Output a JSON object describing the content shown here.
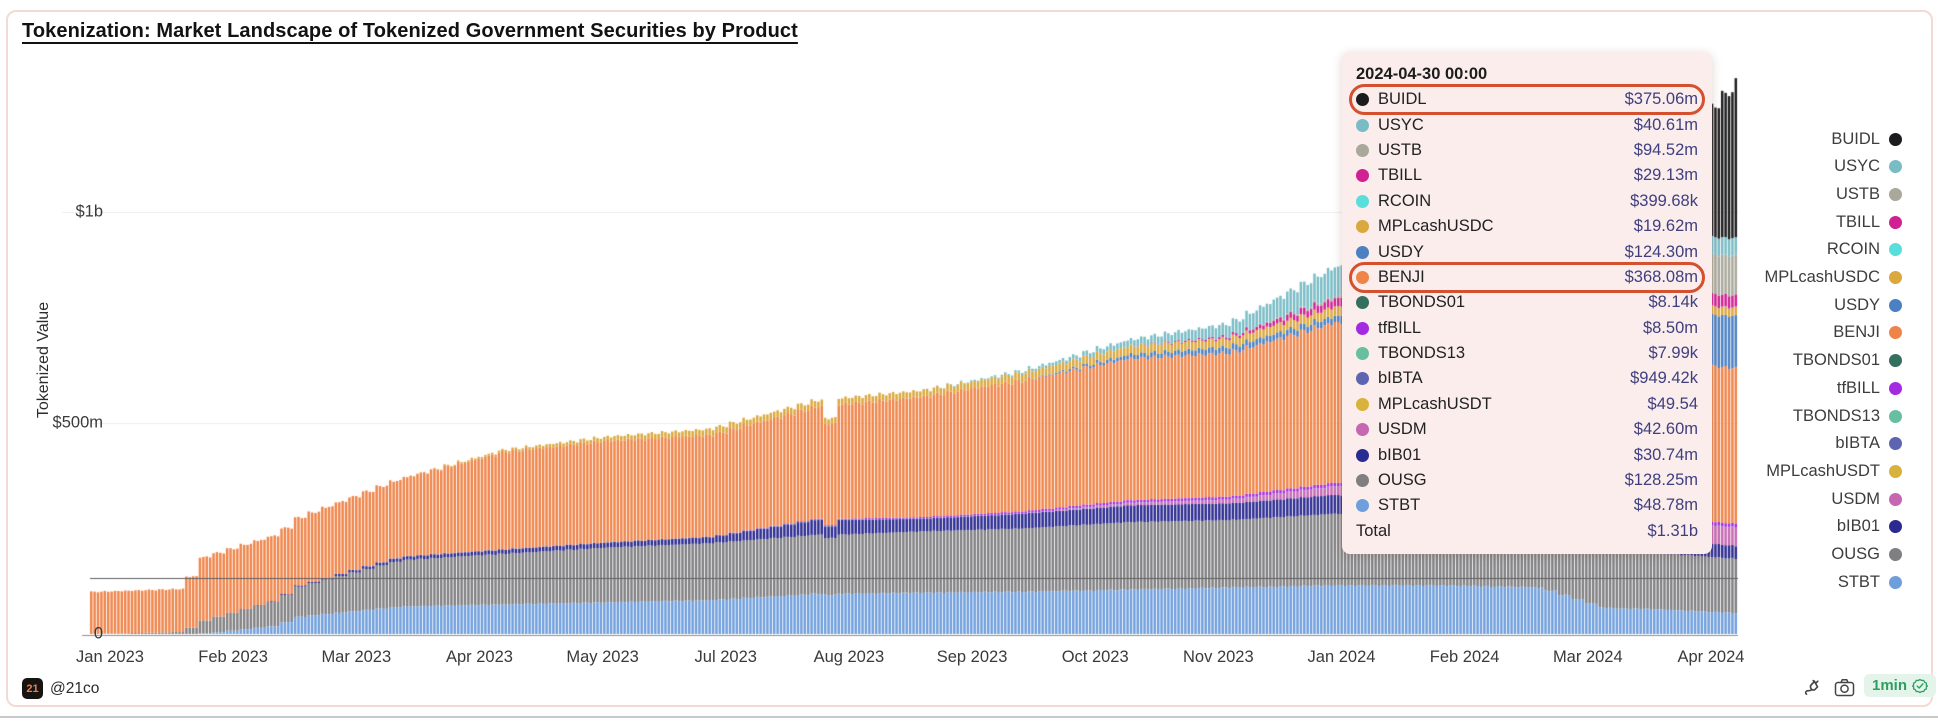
{
  "title": "Tokenization: Market Landscape of Tokenized Government Securities by Product",
  "y_axis": {
    "label": "Tokenized Value",
    "ticks": [
      {
        "label": "$1b",
        "value": 1000
      },
      {
        "label": "$500m",
        "value": 500
      },
      {
        "label": "0",
        "value": 0
      }
    ]
  },
  "x_axis": {
    "labels": [
      "Jan 2023",
      "Feb 2023",
      "Mar 2023",
      "Apr 2023",
      "May 2023",
      "Jul 2023",
      "Aug 2023",
      "Sep 2023",
      "Oct 2023",
      "Nov 2023",
      "Jan 2024",
      "Feb 2024",
      "Mar 2024",
      "Apr 2024"
    ]
  },
  "products": [
    {
      "name": "BUIDL",
      "color": "#1c1c1e",
      "value": "$375.06m",
      "annotated": true
    },
    {
      "name": "USYC",
      "color": "#79bcc6",
      "value": "$40.61m"
    },
    {
      "name": "USTB",
      "color": "#a9a89b",
      "value": "$94.52m"
    },
    {
      "name": "TBILL",
      "color": "#d02092",
      "value": "$29.13m"
    },
    {
      "name": "RCOIN",
      "color": "#59dedb",
      "value": "$399.68k"
    },
    {
      "name": "MPLcashUSDC",
      "color": "#dba83d",
      "value": "$19.62m"
    },
    {
      "name": "USDY",
      "color": "#4b80c3",
      "value": "$124.30m"
    },
    {
      "name": "BENJI",
      "color": "#ef8449",
      "value": "$368.08m",
      "annotated": true
    },
    {
      "name": "TBONDS01",
      "color": "#35705e",
      "value": "$8.14k"
    },
    {
      "name": "tfBILL",
      "color": "#a32ae1",
      "value": "$8.50m"
    },
    {
      "name": "TBONDS13",
      "color": "#68bf9f",
      "value": "$7.99k"
    },
    {
      "name": "bIBTA",
      "color": "#5d65b1",
      "value": "$949.42k"
    },
    {
      "name": "MPLcashUSDT",
      "color": "#d9b23b",
      "value": "$49.54"
    },
    {
      "name": "USDM",
      "color": "#c667b2",
      "value": "$42.60m"
    },
    {
      "name": "bIB01",
      "color": "#2b2a90",
      "value": "$30.74m"
    },
    {
      "name": "OUSG",
      "color": "#7f7f82",
      "value": "$128.25m"
    },
    {
      "name": "STBT",
      "color": "#6f9edc",
      "value": "$48.78m"
    }
  ],
  "tooltip": {
    "header": "2024-04-30 00:00",
    "total_label": "Total",
    "total_value": "$1.31b",
    "annotation_color": "#d5502e"
  },
  "footer": {
    "logo_text": "21",
    "handle": "@21co",
    "interval_badge": "1min",
    "badge_color": "#2ea05e"
  },
  "chart_data": {
    "type": "bar",
    "stacked": true,
    "unit": "$m",
    "title": "Tokenization: Market Landscape of Tokenized Government Securities by Product",
    "xlabel": "",
    "ylabel": "Tokenized Value",
    "x_range": [
      "2023-01-01",
      "2024-04-30"
    ],
    "ylim": [
      0,
      1360
    ],
    "grid_values": [
      500,
      1000
    ],
    "reference_line_value": 132,
    "total_on_last_day_label": "$1.31b",
    "anchor_days": [
      0,
      26,
      31,
      54,
      59,
      90,
      120,
      151,
      181,
      212,
      214,
      218,
      243,
      273,
      304,
      334,
      365,
      396,
      425,
      444,
      449,
      455,
      484
    ],
    "series": [
      {
        "name": "STBT",
        "values": [
          0,
          0,
          0,
          20,
          40,
          65,
          70,
          75,
          80,
          95,
          90,
          95,
          98,
          100,
          105,
          110,
          115,
          115,
          110,
          62,
          60,
          60,
          49
        ]
      },
      {
        "name": "OUSG",
        "values": [
          0,
          5,
          30,
          60,
          70,
          110,
          120,
          130,
          135,
          140,
          130,
          140,
          145,
          150,
          160,
          160,
          170,
          160,
          140,
          137,
          136,
          135,
          128
        ]
      },
      {
        "name": "bIB01",
        "values": [
          0,
          0,
          0,
          2,
          3,
          8,
          10,
          12,
          15,
          35,
          20,
          35,
          30,
          35,
          40,
          40,
          45,
          40,
          35,
          34,
          34,
          33,
          31
        ]
      },
      {
        "name": "USDM",
        "values": [
          0,
          0,
          0,
          0,
          0,
          0,
          0,
          0,
          0,
          0,
          0,
          0,
          0,
          0,
          5,
          8,
          20,
          35,
          40,
          41,
          41,
          42,
          43
        ]
      },
      {
        "name": "MPLcashUSDT",
        "values": [
          0,
          0,
          0,
          0,
          0,
          0,
          0,
          0,
          0,
          0,
          0,
          0,
          0,
          0,
          0,
          0,
          0,
          0,
          0,
          0,
          0,
          0,
          0
        ]
      },
      {
        "name": "bIBTA",
        "values": [
          0,
          0,
          0,
          0,
          0,
          1,
          1,
          1,
          1,
          1,
          1,
          1,
          1,
          1,
          1,
          1,
          1,
          1,
          1,
          1,
          1,
          1,
          1
        ]
      },
      {
        "name": "TBONDS13",
        "values": [
          0,
          0,
          0,
          0,
          0,
          0,
          0,
          0,
          0,
          0,
          0,
          0,
          0,
          0,
          0,
          0,
          0,
          0,
          0,
          0,
          0,
          0,
          0
        ]
      },
      {
        "name": "tfBILL",
        "values": [
          0,
          0,
          0,
          0,
          0,
          0,
          0,
          0,
          0,
          2,
          2,
          2,
          3,
          5,
          6,
          7,
          8,
          8,
          8.5,
          8.5,
          8.5,
          8.5,
          8.5
        ]
      },
      {
        "name": "TBONDS01",
        "values": [
          0,
          0,
          0,
          0,
          0,
          0,
          0,
          0,
          0,
          0,
          0,
          0,
          0,
          0,
          0,
          0,
          0,
          0,
          0,
          0,
          0,
          0,
          0
        ]
      },
      {
        "name": "BENJI",
        "values": [
          100,
          102,
          150,
          155,
          160,
          185,
          230,
          240,
          240,
          265,
          210,
          270,
          285,
          310,
          335,
          340,
          380,
          380,
          375,
          372,
          371,
          370,
          368
        ]
      },
      {
        "name": "USDY",
        "values": [
          0,
          0,
          0,
          0,
          0,
          0,
          0,
          0,
          0,
          0,
          0,
          0,
          0,
          0,
          10,
          15,
          15,
          60,
          100,
          110,
          112,
          115,
          124
        ]
      },
      {
        "name": "MPLcashUSDC",
        "values": [
          0,
          0,
          0,
          0,
          0,
          0,
          5,
          10,
          15,
          15,
          12,
          15,
          15,
          18,
          20,
          20,
          22,
          20,
          20,
          20,
          20,
          20,
          19.6
        ]
      },
      {
        "name": "RCOIN",
        "values": [
          0,
          0,
          0,
          0,
          0,
          0,
          0,
          0,
          0,
          0,
          0,
          0,
          0,
          0,
          0,
          0,
          0,
          0,
          0,
          0,
          0,
          0,
          0.4
        ]
      },
      {
        "name": "TBILL",
        "values": [
          0,
          0,
          0,
          0,
          0,
          0,
          0,
          0,
          0,
          0,
          0,
          0,
          0,
          0,
          0,
          5,
          20,
          25,
          28,
          28.5,
          28.5,
          29,
          29
        ]
      },
      {
        "name": "USTB",
        "values": [
          0,
          0,
          0,
          0,
          0,
          0,
          0,
          0,
          0,
          0,
          0,
          0,
          0,
          0,
          0,
          0,
          5,
          40,
          80,
          88,
          90,
          91,
          94.5
        ]
      },
      {
        "name": "USYC",
        "values": [
          0,
          0,
          0,
          0,
          0,
          0,
          0,
          0,
          0,
          0,
          0,
          0,
          0,
          5,
          15,
          30,
          70,
          60,
          50,
          46,
          45,
          44,
          41
        ]
      },
      {
        "name": "BUIDL",
        "values": [
          0,
          0,
          0,
          0,
          0,
          0,
          0,
          0,
          0,
          0,
          0,
          0,
          0,
          0,
          0,
          0,
          0,
          0,
          0,
          0,
          60,
          140,
          375
        ]
      }
    ]
  }
}
